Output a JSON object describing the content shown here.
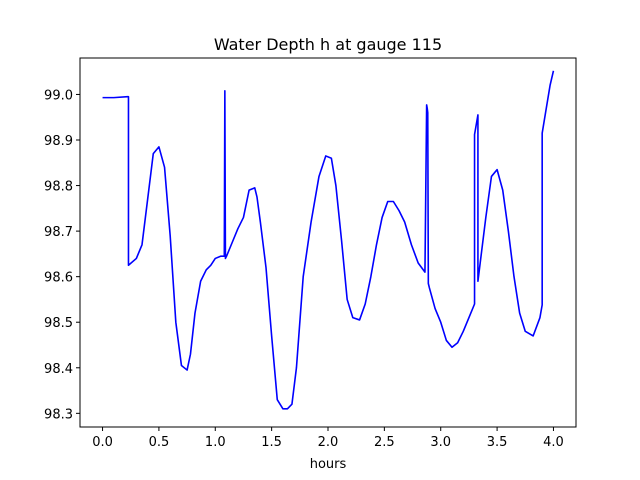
{
  "chart_data": {
    "type": "line",
    "title": "Water Depth h at gauge 115",
    "xlabel": "hours",
    "ylabel": "",
    "xlim": [
      -0.2,
      4.2
    ],
    "ylim": [
      98.27,
      99.08
    ],
    "xticks": [
      0.0,
      0.5,
      1.0,
      1.5,
      2.0,
      2.5,
      3.0,
      3.5,
      4.0
    ],
    "xtick_labels": [
      "0.0",
      "0.5",
      "1.0",
      "1.5",
      "2.0",
      "2.5",
      "3.0",
      "3.5",
      "4.0"
    ],
    "yticks": [
      98.3,
      98.4,
      98.5,
      98.6,
      98.7,
      98.8,
      98.9,
      99.0
    ],
    "ytick_labels": [
      "98.3",
      "98.4",
      "98.5",
      "98.6",
      "98.7",
      "98.8",
      "98.9",
      "99.0"
    ],
    "grid": false,
    "legend": "none",
    "series": [
      {
        "color": "#0000ff",
        "x": [
          0.0,
          0.1,
          0.22,
          0.23,
          0.23,
          0.3,
          0.35,
          0.4,
          0.45,
          0.5,
          0.55,
          0.6,
          0.65,
          0.7,
          0.75,
          0.78,
          0.82,
          0.87,
          0.92,
          0.96,
          1.0,
          1.05,
          1.08,
          1.085,
          1.09,
          1.1,
          1.15,
          1.2,
          1.25,
          1.3,
          1.35,
          1.37,
          1.4,
          1.45,
          1.5,
          1.55,
          1.6,
          1.64,
          1.68,
          1.72,
          1.78,
          1.85,
          1.92,
          1.98,
          2.03,
          2.07,
          2.12,
          2.17,
          2.22,
          2.28,
          2.33,
          2.38,
          2.43,
          2.48,
          2.53,
          2.58,
          2.63,
          2.68,
          2.74,
          2.8,
          2.86,
          2.875,
          2.88,
          2.885,
          2.89,
          2.9,
          2.95,
          3.0,
          3.05,
          3.1,
          3.15,
          3.2,
          3.25,
          3.3,
          3.3,
          3.33,
          3.33,
          3.35,
          3.4,
          3.45,
          3.5,
          3.55,
          3.6,
          3.65,
          3.7,
          3.75,
          3.82,
          3.88,
          3.9,
          3.9,
          3.93,
          3.97,
          4.0
        ],
        "values": [
          98.993,
          98.993,
          98.995,
          98.995,
          98.625,
          98.64,
          98.67,
          98.77,
          98.87,
          98.885,
          98.84,
          98.69,
          98.5,
          98.405,
          98.395,
          98.43,
          98.52,
          98.59,
          98.615,
          98.625,
          98.64,
          98.645,
          98.645,
          99.008,
          98.64,
          98.645,
          98.675,
          98.705,
          98.73,
          98.79,
          98.795,
          98.775,
          98.72,
          98.62,
          98.47,
          98.33,
          98.31,
          98.31,
          98.32,
          98.4,
          98.6,
          98.72,
          98.82,
          98.865,
          98.86,
          98.8,
          98.68,
          98.55,
          98.51,
          98.505,
          98.54,
          98.6,
          98.67,
          98.73,
          98.765,
          98.765,
          98.745,
          98.72,
          98.67,
          98.63,
          98.61,
          98.977,
          98.97,
          98.96,
          98.585,
          98.575,
          98.53,
          98.5,
          98.46,
          98.445,
          98.455,
          98.48,
          98.51,
          98.54,
          98.912,
          98.955,
          98.59,
          98.63,
          98.73,
          98.82,
          98.835,
          98.79,
          98.7,
          98.6,
          98.52,
          98.48,
          98.47,
          98.51,
          98.538,
          98.915,
          98.96,
          99.02,
          99.052
        ]
      }
    ]
  }
}
